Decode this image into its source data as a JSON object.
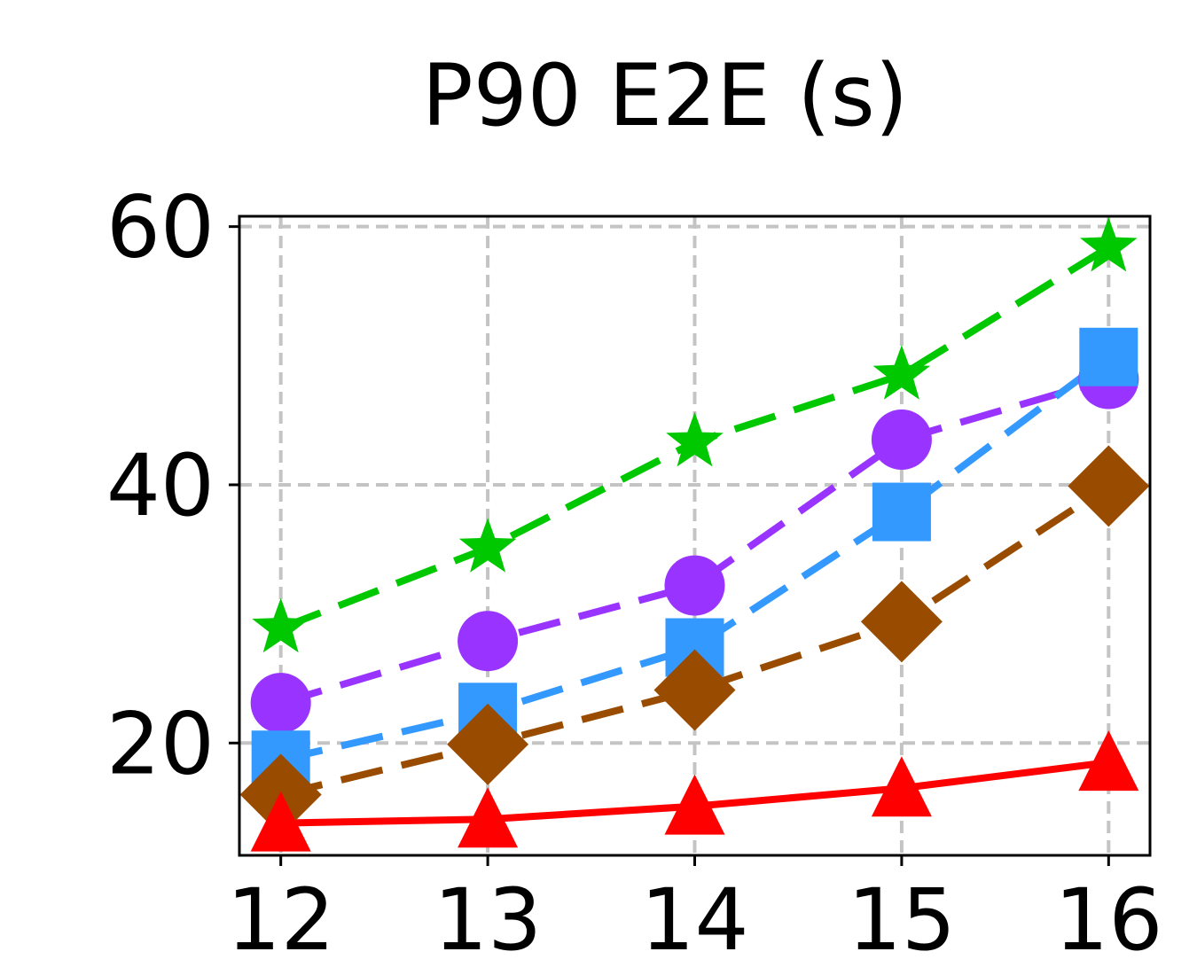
{
  "chart_data": {
    "type": "line",
    "title": "P90 E2E (s)",
    "xlabel": "",
    "ylabel": "",
    "x": [
      12,
      13,
      14,
      15,
      16
    ],
    "xticks": [
      "12",
      "13",
      "14",
      "15",
      "16"
    ],
    "yticks": [
      "20",
      "40",
      "60"
    ],
    "xlim": [
      11.8,
      16.2
    ],
    "ylim": [
      11.3,
      60.8
    ],
    "grid": true,
    "series": [
      {
        "color": "#00c800",
        "marker": "star",
        "linestyle": "dashed",
        "values": [
          28.9,
          35.1,
          43.3,
          48.5,
          58.4
        ]
      },
      {
        "color": "#9933ff",
        "marker": "circle",
        "linestyle": "dashed",
        "values": [
          23.1,
          27.9,
          32.2,
          43.5,
          48.2
        ]
      },
      {
        "color": "#3399ff",
        "marker": "square",
        "linestyle": "dashed",
        "values": [
          18.7,
          22.4,
          27.4,
          37.9,
          49.9
        ]
      },
      {
        "color": "#994c00",
        "marker": "diamond",
        "linestyle": "dashed",
        "values": [
          16.0,
          19.9,
          24.1,
          29.4,
          39.9
        ]
      },
      {
        "color": "#ff0000",
        "marker": "triangle",
        "linestyle": "solid",
        "values": [
          13.8,
          14.1,
          15.1,
          16.5,
          18.5
        ]
      }
    ]
  }
}
